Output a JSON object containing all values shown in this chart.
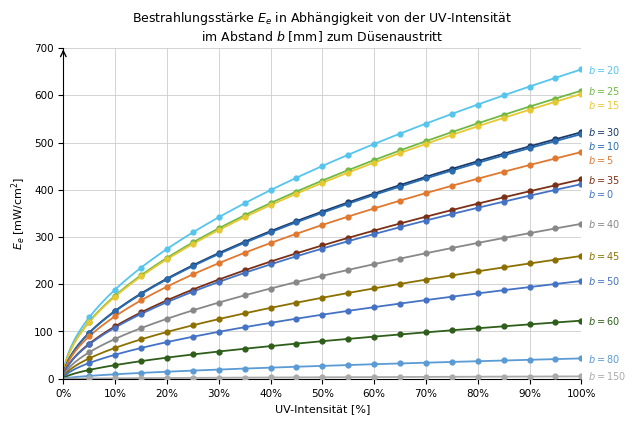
{
  "title": "Bestrahlungsstärke $E_e$ in Abhängigkeit von der UV-Intensität\nim Abstand $b$ [mm] zum Düsenaustrítt",
  "ylabel": "$E_e$ [mW/cm$^2$]",
  "xlabel": "UV-Intensität [%]",
  "ylim": [
    0,
    700
  ],
  "series": [
    {
      "label": "$b = 20$",
      "A": 655,
      "color": "#56C5EE",
      "power": 0.54
    },
    {
      "label": "$b = 25$",
      "A": 610,
      "color": "#70B844",
      "power": 0.54
    },
    {
      "label": "$b = 15$",
      "A": 603,
      "color": "#E8C832",
      "power": 0.54
    },
    {
      "label": "$b = 30$",
      "A": 522,
      "color": "#1A3A6A",
      "power": 0.56
    },
    {
      "label": "$b = 10$",
      "A": 518,
      "color": "#2B6CB0",
      "power": 0.56
    },
    {
      "label": "$b = 5$",
      "A": 480,
      "color": "#E07830",
      "power": 0.56
    },
    {
      "label": "$b = 35$",
      "A": 422,
      "color": "#7B3015",
      "power": 0.58
    },
    {
      "label": "$b = 0$",
      "A": 412,
      "color": "#4472C4",
      "power": 0.58
    },
    {
      "label": "$b = 40$",
      "A": 328,
      "color": "#888888",
      "power": 0.59
    },
    {
      "label": "$b = 45$",
      "A": 260,
      "color": "#8B7000",
      "power": 0.6
    },
    {
      "label": "$b = 50$",
      "A": 207,
      "color": "#4472C4",
      "power": 0.61
    },
    {
      "label": "$b = 60$",
      "A": 123,
      "color": "#2E5E1A",
      "power": 0.63
    },
    {
      "label": "$b = 80$",
      "A": 43,
      "color": "#5B9BD5",
      "power": 0.66
    },
    {
      "label": "$b = 150$",
      "A": 5,
      "color": "#AAAAAA",
      "power": 0.7
    }
  ],
  "dot_x": [
    0.05,
    0.1,
    0.15,
    0.2,
    0.25,
    0.3,
    0.35,
    0.4,
    0.45,
    0.5,
    0.55,
    0.6,
    0.65,
    0.7,
    0.75,
    0.8,
    0.85,
    0.9,
    0.95,
    1.0
  ],
  "xticks": [
    0.0,
    0.1,
    0.2,
    0.3,
    0.4,
    0.5,
    0.6,
    0.7,
    0.8,
    0.9,
    1.0
  ],
  "yticks": [
    0,
    100,
    200,
    300,
    400,
    500,
    600,
    700
  ],
  "grid_color": "#CCCCCC",
  "bg_color": "#FFFFFF",
  "markersize": 3.5,
  "linewidth": 1.3,
  "title_fontsize": 9,
  "label_fontsize": 8,
  "tick_fontsize": 7.5,
  "inline_fontsize": 7
}
